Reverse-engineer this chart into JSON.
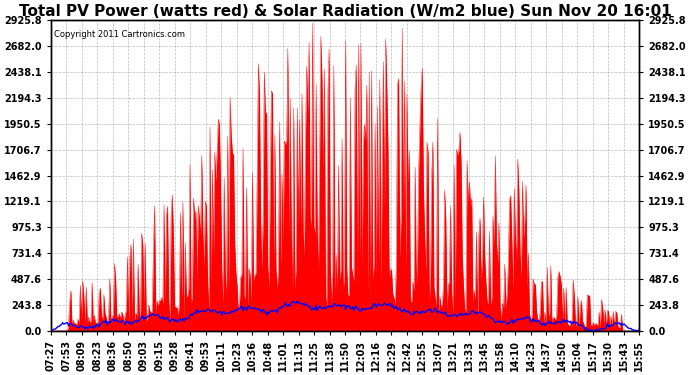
{
  "title": "Total PV Power (watts red) & Solar Radiation (W/m2 blue) Sun Nov 20 16:01",
  "copyright_text": "Copyright 2011 Cartronics.com",
  "ymin": 0.0,
  "ymax": 2925.8,
  "yticks": [
    0.0,
    243.8,
    487.6,
    731.4,
    975.3,
    1219.1,
    1462.9,
    1706.7,
    1950.5,
    2194.3,
    2438.1,
    2682.0,
    2925.8
  ],
  "xtick_labels": [
    "07:27",
    "07:53",
    "08:09",
    "08:23",
    "08:36",
    "08:50",
    "09:03",
    "09:15",
    "09:28",
    "09:41",
    "09:53",
    "10:11",
    "10:23",
    "10:36",
    "10:48",
    "11:01",
    "11:13",
    "11:25",
    "11:38",
    "11:50",
    "12:03",
    "12:16",
    "12:29",
    "12:42",
    "12:55",
    "13:07",
    "13:21",
    "13:33",
    "13:45",
    "13:58",
    "14:10",
    "14:23",
    "14:37",
    "14:50",
    "15:04",
    "15:17",
    "15:30",
    "15:43",
    "15:55"
  ],
  "background_color": "#ffffff",
  "plot_bg_color": "#ffffff",
  "grid_color": "#aaaaaa",
  "red_color": "#ff0000",
  "blue_color": "#0000ff",
  "title_fontsize": 11,
  "tick_fontsize": 7,
  "n_points": 500
}
